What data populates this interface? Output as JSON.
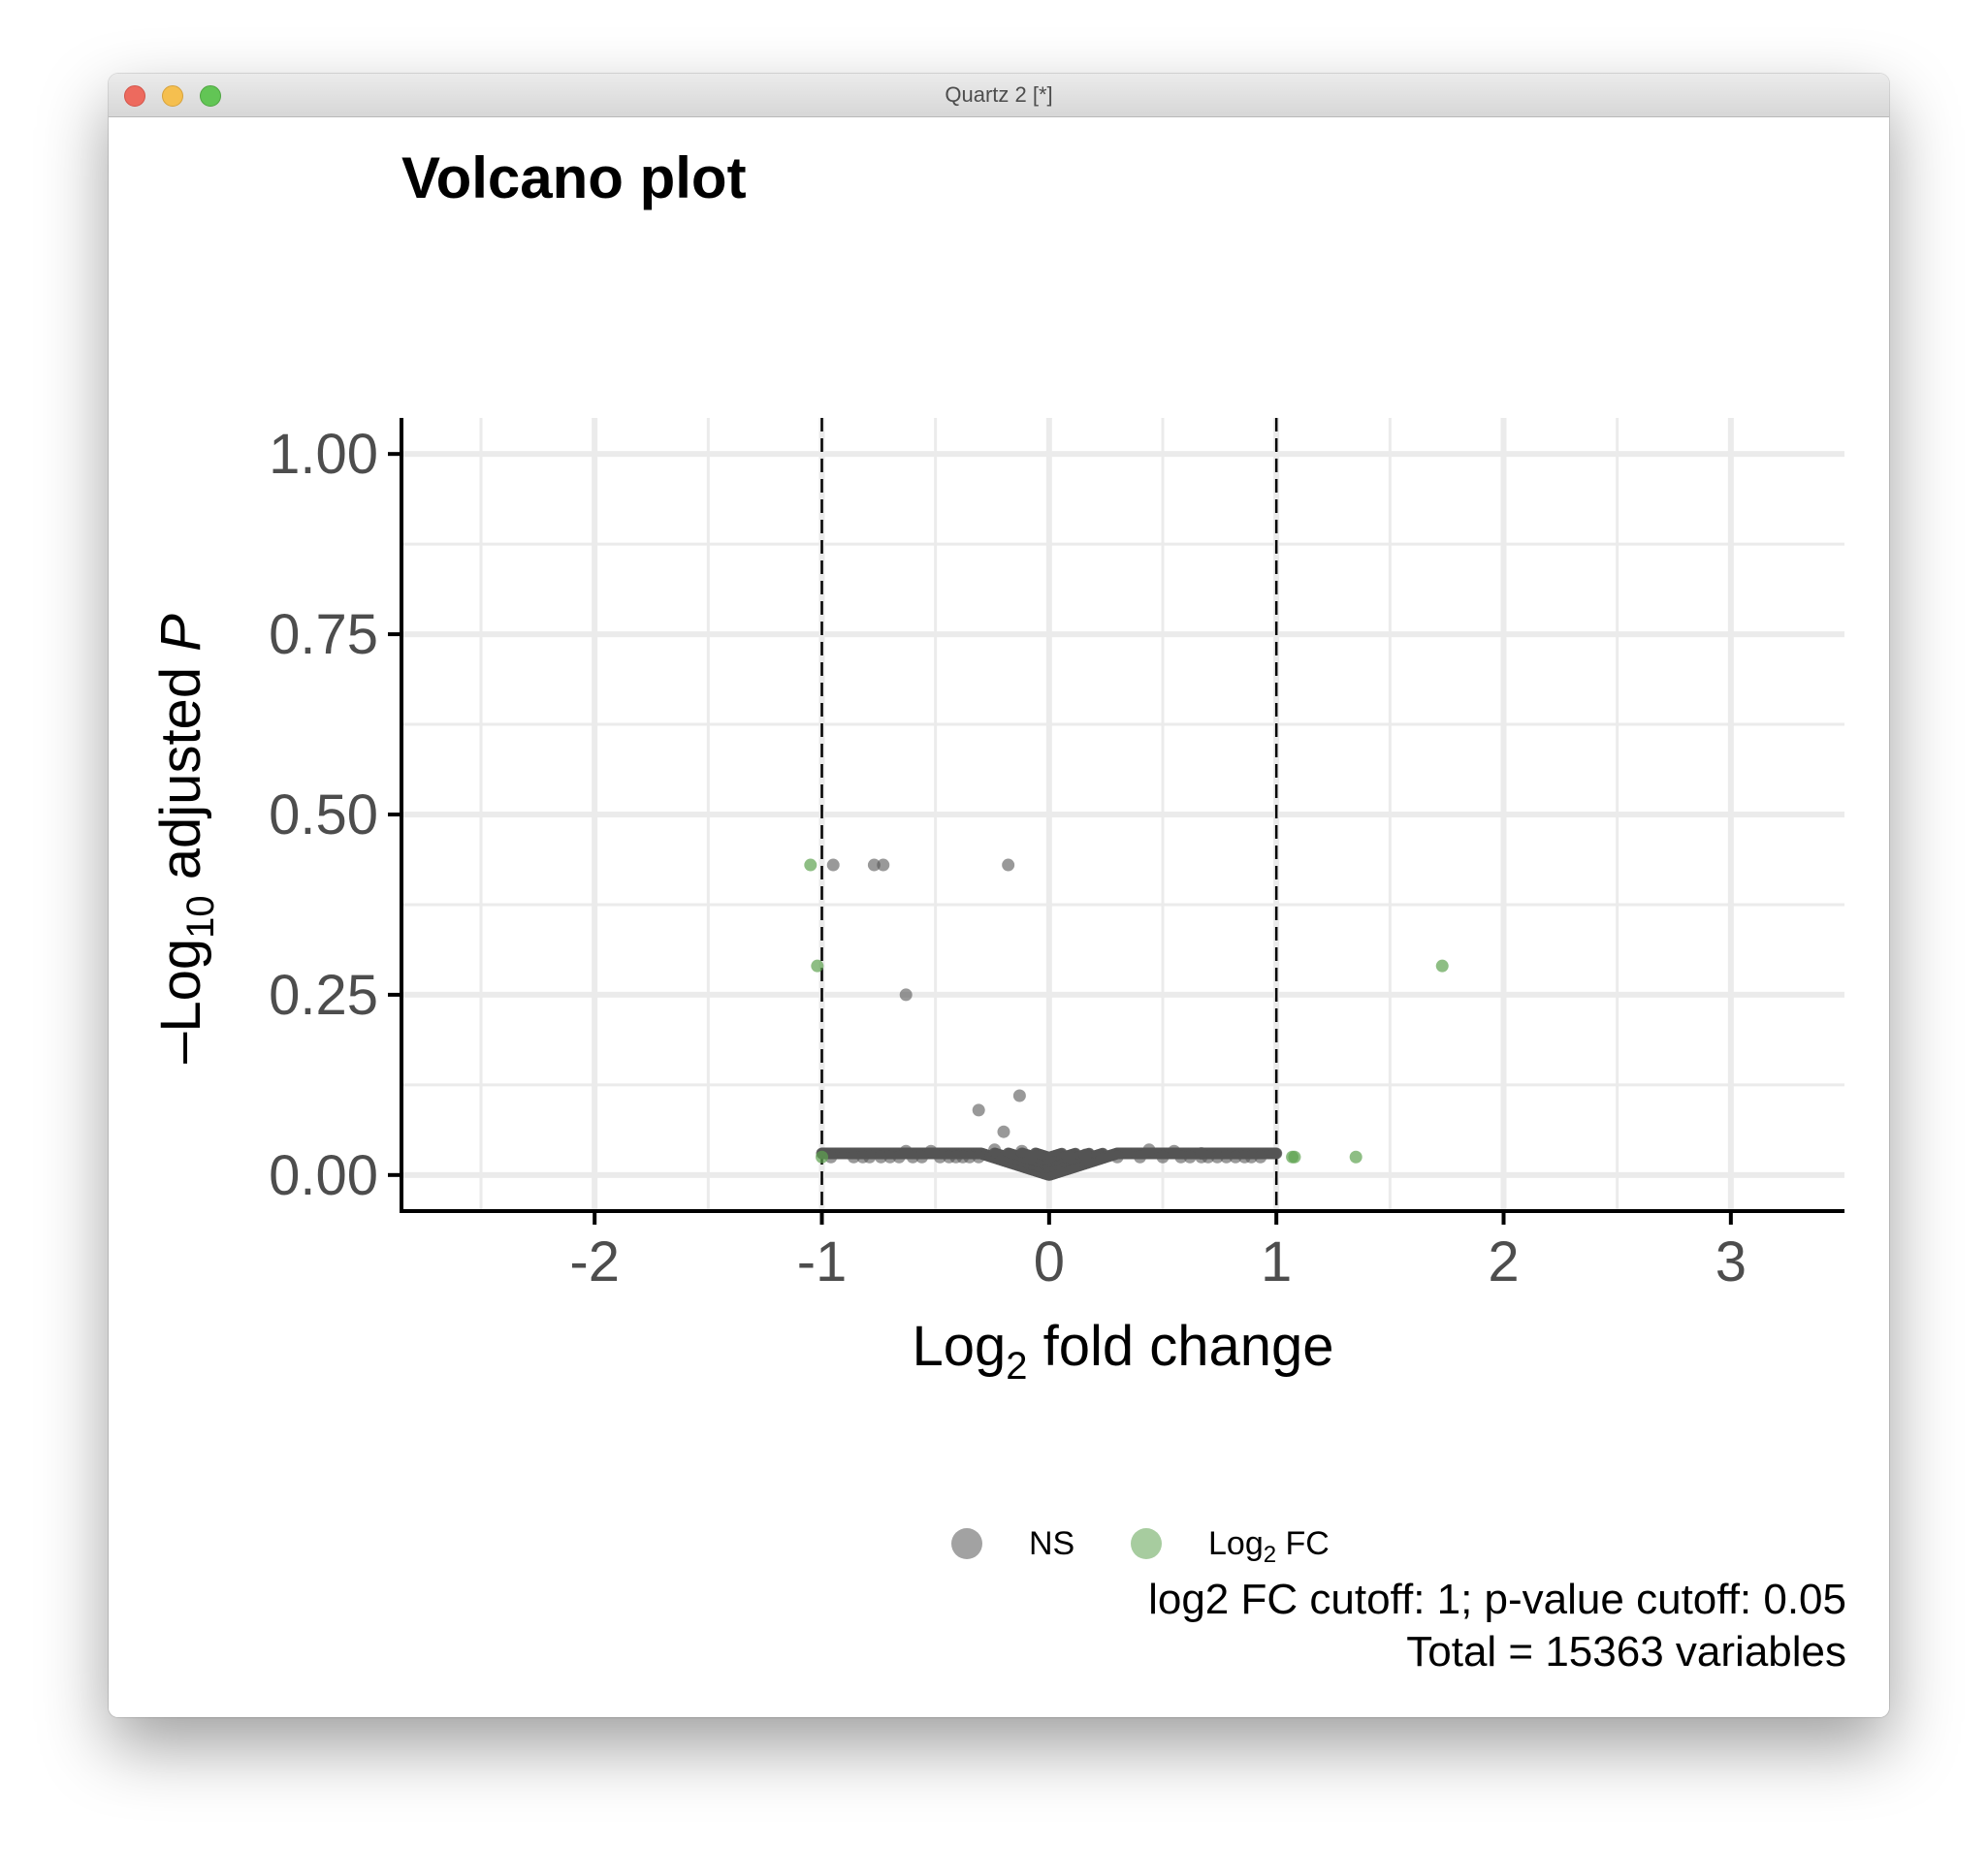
{
  "window": {
    "title": "Quartz 2 [*]",
    "controls": [
      "close-button",
      "minimize-button",
      "zoom-button"
    ]
  },
  "colors": {
    "ns": "#555555",
    "log2fc": "#5ea350",
    "grid": "#ebebeb",
    "axis": "#000000",
    "tick_text": "#4d4d4d"
  },
  "caption": {
    "line1": "log2 FC cutoff: 1; p-value cutoff: 0.05",
    "line2": "Total = 15363 variables"
  },
  "chart_data": {
    "type": "scatter",
    "title": "Volcano plot",
    "xlabel": {
      "main": "Log",
      "sub": "2",
      "rest": " fold change"
    },
    "ylabel": {
      "prefix": "–Log",
      "sub": "10",
      "mid": " adjusted ",
      "italic": "P"
    },
    "xlim": [
      -2.85,
      3.5
    ],
    "ylim": [
      -0.05,
      1.05
    ],
    "x_ticks": [
      -2,
      -1,
      0,
      1,
      2,
      3
    ],
    "x_tick_labels": [
      "-2",
      "-1",
      "0",
      "1",
      "2",
      "3"
    ],
    "y_ticks": [
      0,
      0.25,
      0.5,
      0.75,
      1
    ],
    "y_tick_labels": [
      "0.00",
      "0.25",
      "0.50",
      "0.75",
      "1.00"
    ],
    "grid": true,
    "cutoffs": {
      "x": [
        -1,
        1
      ]
    },
    "legend": {
      "position": "bottom",
      "items": [
        {
          "label": "NS",
          "series": "ns"
        },
        {
          "label_main": "Log",
          "label_sub": "2",
          "label_rest": " FC",
          "series": "log2fc"
        }
      ]
    },
    "series": [
      {
        "name": "NS",
        "color": "#555555",
        "points": [
          [
            -0.95,
            0.43
          ],
          [
            -0.77,
            0.43
          ],
          [
            -0.73,
            0.43
          ],
          [
            -0.18,
            0.43
          ],
          [
            -0.63,
            0.25
          ],
          [
            -0.13,
            0.11
          ],
          [
            -0.31,
            0.09
          ],
          [
            -0.2,
            0.06
          ],
          [
            -0.96,
            0.025
          ],
          [
            -0.86,
            0.025
          ],
          [
            -0.82,
            0.025
          ],
          [
            -0.79,
            0.025
          ],
          [
            -0.74,
            0.025
          ],
          [
            -0.7,
            0.025
          ],
          [
            -0.66,
            0.025
          ],
          [
            -0.63,
            0.033
          ],
          [
            -0.6,
            0.025
          ],
          [
            -0.56,
            0.025
          ],
          [
            -0.52,
            0.033
          ],
          [
            -0.48,
            0.025
          ],
          [
            -0.44,
            0.025
          ],
          [
            -0.41,
            0.025
          ],
          [
            -0.38,
            0.025
          ],
          [
            -0.35,
            0.025
          ],
          [
            -0.31,
            0.025
          ],
          [
            -0.24,
            0.035
          ],
          [
            -0.12,
            0.033
          ],
          [
            -0.08,
            0.025
          ],
          [
            0.09,
            0.025
          ],
          [
            0.16,
            0.028
          ],
          [
            0.3,
            0.025
          ],
          [
            0.4,
            0.025
          ],
          [
            0.44,
            0.035
          ],
          [
            0.5,
            0.025
          ],
          [
            0.55,
            0.033
          ],
          [
            0.58,
            0.025
          ],
          [
            0.62,
            0.025
          ],
          [
            0.67,
            0.03
          ],
          [
            0.67,
            0.025
          ],
          [
            0.7,
            0.025
          ],
          [
            0.74,
            0.025
          ],
          [
            0.78,
            0.025
          ],
          [
            0.82,
            0.025
          ],
          [
            0.86,
            0.025
          ],
          [
            0.89,
            0.025
          ],
          [
            0.93,
            0.025
          ]
        ],
        "dense_band": {
          "x_range": [
            -1.0,
            1.0
          ],
          "y_max": 0.03,
          "y_peak_at_zero": 0.0
        }
      },
      {
        "name": "Log2 FC",
        "color": "#5ea350",
        "points": [
          [
            -1.05,
            0.43
          ],
          [
            -1.02,
            0.29
          ],
          [
            -1.0,
            0.025
          ],
          [
            1.07,
            0.025
          ],
          [
            1.08,
            0.025
          ],
          [
            1.35,
            0.025
          ],
          [
            1.73,
            0.29
          ]
        ]
      }
    ]
  }
}
